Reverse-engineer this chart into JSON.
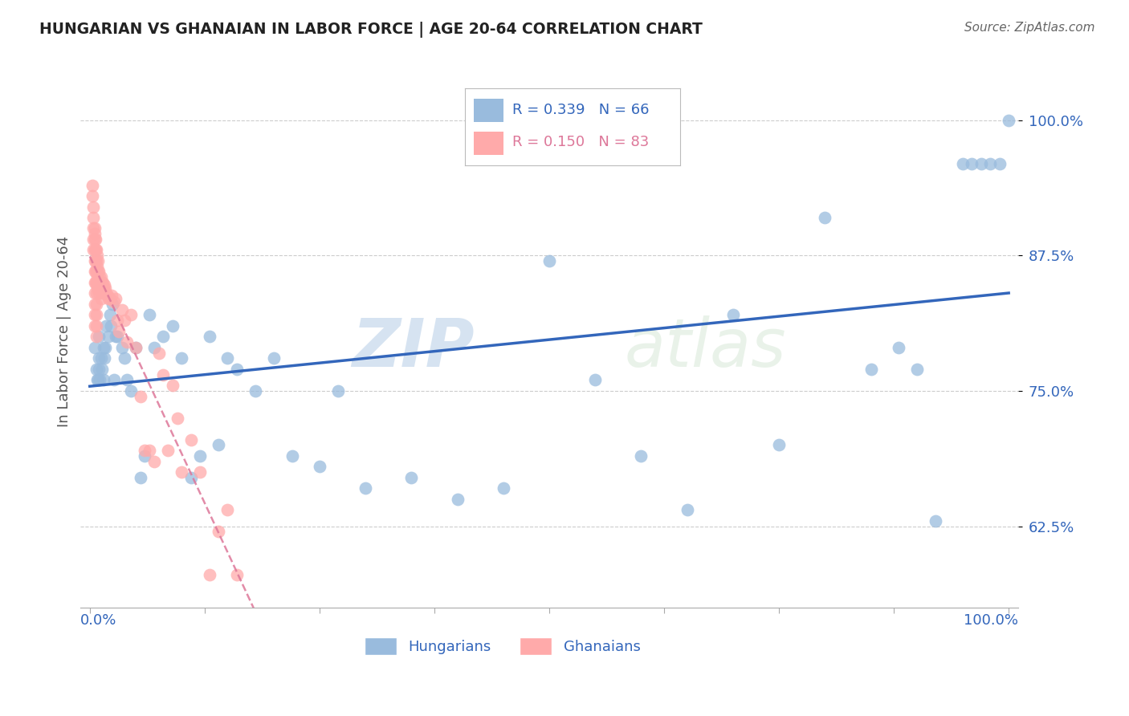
{
  "title": "HUNGARIAN VS GHANAIAN IN LABOR FORCE | AGE 20-64 CORRELATION CHART",
  "source": "Source: ZipAtlas.com",
  "ylabel": "In Labor Force | Age 20-64",
  "ytick_labels": [
    "62.5%",
    "75.0%",
    "87.5%",
    "100.0%"
  ],
  "ytick_values": [
    0.625,
    0.75,
    0.875,
    1.0
  ],
  "legend1_R": "0.339",
  "legend1_N": "66",
  "legend2_R": "0.150",
  "legend2_N": "83",
  "legend_label1": "Hungarians",
  "legend_label2": "Ghanaians",
  "blue_color": "#99BBDD",
  "pink_color": "#FFAAAA",
  "blue_line_color": "#3366BB",
  "pink_line_color": "#DD7799",
  "watermark_zip": "ZIP",
  "watermark_atlas": "atlas",
  "hun_x": [
    0.005,
    0.007,
    0.008,
    0.009,
    0.01,
    0.01,
    0.01,
    0.011,
    0.012,
    0.013,
    0.015,
    0.015,
    0.016,
    0.017,
    0.018,
    0.02,
    0.022,
    0.023,
    0.025,
    0.026,
    0.028,
    0.03,
    0.035,
    0.038,
    0.04,
    0.045,
    0.05,
    0.055,
    0.06,
    0.065,
    0.07,
    0.08,
    0.09,
    0.1,
    0.11,
    0.12,
    0.13,
    0.14,
    0.15,
    0.16,
    0.18,
    0.2,
    0.22,
    0.25,
    0.27,
    0.3,
    0.35,
    0.4,
    0.45,
    0.5,
    0.55,
    0.6,
    0.65,
    0.7,
    0.75,
    0.8,
    0.85,
    0.88,
    0.9,
    0.92,
    0.95,
    0.96,
    0.97,
    0.98,
    0.99,
    1.0
  ],
  "hun_y": [
    0.79,
    0.77,
    0.76,
    0.76,
    0.8,
    0.78,
    0.77,
    0.76,
    0.78,
    0.77,
    0.79,
    0.76,
    0.78,
    0.79,
    0.81,
    0.8,
    0.82,
    0.81,
    0.83,
    0.76,
    0.8,
    0.8,
    0.79,
    0.78,
    0.76,
    0.75,
    0.79,
    0.67,
    0.69,
    0.82,
    0.79,
    0.8,
    0.81,
    0.78,
    0.67,
    0.69,
    0.8,
    0.7,
    0.78,
    0.77,
    0.75,
    0.78,
    0.69,
    0.68,
    0.75,
    0.66,
    0.67,
    0.65,
    0.66,
    0.87,
    0.76,
    0.69,
    0.64,
    0.82,
    0.7,
    0.91,
    0.77,
    0.79,
    0.77,
    0.63,
    0.96,
    0.96,
    0.96,
    0.96,
    0.96,
    1.0
  ],
  "gha_x": [
    0.003,
    0.003,
    0.004,
    0.004,
    0.004,
    0.004,
    0.004,
    0.005,
    0.005,
    0.005,
    0.005,
    0.005,
    0.005,
    0.005,
    0.005,
    0.005,
    0.005,
    0.005,
    0.006,
    0.006,
    0.006,
    0.006,
    0.006,
    0.007,
    0.007,
    0.007,
    0.007,
    0.007,
    0.007,
    0.007,
    0.007,
    0.007,
    0.008,
    0.008,
    0.008,
    0.008,
    0.009,
    0.009,
    0.009,
    0.01,
    0.01,
    0.01,
    0.011,
    0.011,
    0.012,
    0.012,
    0.012,
    0.013,
    0.013,
    0.014,
    0.015,
    0.016,
    0.017,
    0.018,
    0.019,
    0.02,
    0.022,
    0.024,
    0.026,
    0.028,
    0.03,
    0.032,
    0.035,
    0.038,
    0.04,
    0.045,
    0.05,
    0.055,
    0.06,
    0.065,
    0.07,
    0.075,
    0.08,
    0.085,
    0.09,
    0.095,
    0.1,
    0.11,
    0.12,
    0.13,
    0.14,
    0.15,
    0.16
  ],
  "gha_y": [
    0.94,
    0.93,
    0.92,
    0.91,
    0.9,
    0.89,
    0.88,
    0.9,
    0.895,
    0.89,
    0.88,
    0.87,
    0.86,
    0.85,
    0.84,
    0.83,
    0.82,
    0.81,
    0.89,
    0.88,
    0.87,
    0.86,
    0.85,
    0.88,
    0.87,
    0.86,
    0.85,
    0.84,
    0.83,
    0.82,
    0.81,
    0.8,
    0.875,
    0.865,
    0.855,
    0.845,
    0.87,
    0.86,
    0.85,
    0.86,
    0.85,
    0.84,
    0.855,
    0.845,
    0.855,
    0.845,
    0.835,
    0.85,
    0.84,
    0.85,
    0.845,
    0.848,
    0.845,
    0.84,
    0.838,
    0.835,
    0.835,
    0.838,
    0.832,
    0.835,
    0.815,
    0.805,
    0.825,
    0.815,
    0.795,
    0.82,
    0.79,
    0.745,
    0.695,
    0.695,
    0.685,
    0.785,
    0.765,
    0.695,
    0.755,
    0.725,
    0.675,
    0.705,
    0.675,
    0.58,
    0.62,
    0.64,
    0.58
  ]
}
